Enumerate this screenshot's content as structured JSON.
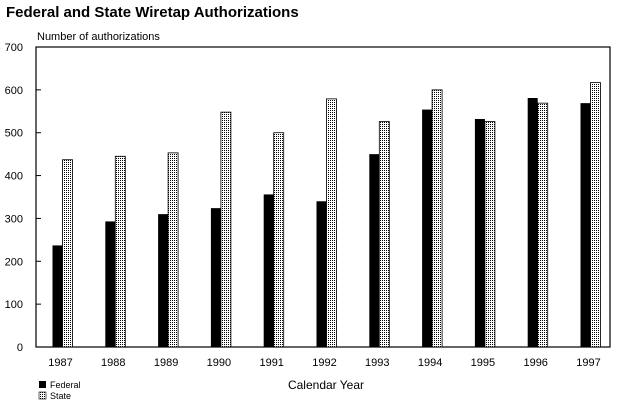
{
  "chart_data": {
    "type": "bar",
    "title": "Federal and State Wiretap Authorizations",
    "ylabel": "Number of authorizations",
    "xlabel": "Calendar Year",
    "ylim": [
      0,
      700
    ],
    "yticks": [
      0,
      100,
      200,
      300,
      400,
      500,
      600,
      700
    ],
    "grid": false,
    "legend_position": "bottom-left",
    "categories": [
      "1987",
      "1988",
      "1989",
      "1990",
      "1991",
      "1992",
      "1993",
      "1994",
      "1995",
      "1996",
      "1997"
    ],
    "series": [
      {
        "name": "Federal",
        "color": "#000000",
        "values": [
          237,
          293,
          310,
          324,
          356,
          340,
          450,
          554,
          532,
          581,
          569
        ]
      },
      {
        "name": "State",
        "color": "#9a9a9a",
        "values": [
          437,
          445,
          453,
          548,
          500,
          579,
          526,
          600,
          526,
          569,
          617
        ]
      }
    ]
  }
}
